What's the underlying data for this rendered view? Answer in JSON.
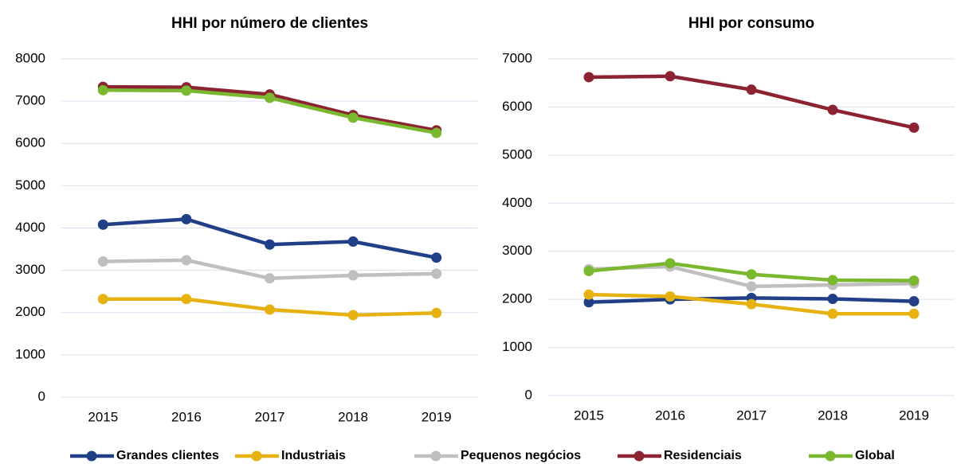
{
  "chart_data": [
    {
      "type": "line",
      "title": "HHI por número de clientes",
      "categories": [
        "2015",
        "2016",
        "2017",
        "2018",
        "2019"
      ],
      "ylim": [
        0,
        8000
      ],
      "yticks": [
        0,
        1000,
        2000,
        3000,
        4000,
        5000,
        6000,
        7000,
        8000
      ],
      "grid": true,
      "series": [
        {
          "name": "Grandes clientes",
          "color": "#203f86",
          "values": [
            4080,
            4210,
            3610,
            3680,
            3300
          ]
        },
        {
          "name": "Industriais",
          "color": "#e6b212",
          "values": [
            2320,
            2320,
            2070,
            1940,
            1990
          ]
        },
        {
          "name": "Pequenos negócios",
          "color": "#bfbfbf",
          "values": [
            3210,
            3240,
            2810,
            2880,
            2920
          ]
        },
        {
          "name": "Residenciais",
          "color": "#8b2332",
          "values": [
            7340,
            7330,
            7160,
            6670,
            6310
          ]
        },
        {
          "name": "Global",
          "color": "#7ab830",
          "values": [
            7260,
            7250,
            7080,
            6610,
            6250
          ]
        }
      ]
    },
    {
      "type": "line",
      "title": "HHI por consumo",
      "categories": [
        "2015",
        "2016",
        "2017",
        "2018",
        "2019"
      ],
      "ylim": [
        0,
        7000
      ],
      "yticks": [
        0,
        1000,
        2000,
        3000,
        4000,
        5000,
        6000,
        7000
      ],
      "grid": true,
      "series": [
        {
          "color": "#203f86",
          "values": [
            1940,
            2000,
            2030,
            2010,
            1960
          ]
        },
        {
          "color": "#e6b212",
          "values": [
            2100,
            2060,
            1900,
            1700,
            1700
          ]
        },
        {
          "color": "#bfbfbf",
          "values": [
            2630,
            2680,
            2270,
            2300,
            2330
          ]
        },
        {
          "color": "#8b2332",
          "values": [
            6620,
            6640,
            6360,
            5940,
            5570
          ]
        },
        {
          "color": "#7ab830",
          "values": [
            2590,
            2750,
            2520,
            2400,
            2390
          ]
        }
      ]
    }
  ]
}
